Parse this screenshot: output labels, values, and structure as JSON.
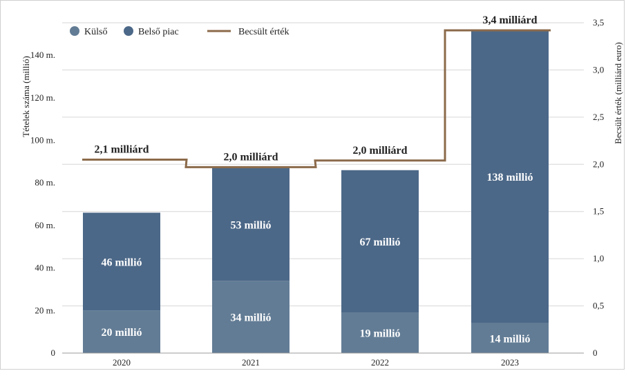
{
  "chart_data": {
    "type": "bar",
    "stacked": true,
    "categories": [
      "2020",
      "2021",
      "2022",
      "2023"
    ],
    "series": [
      {
        "name": "Külső",
        "values": [
          20,
          34,
          19,
          14
        ],
        "labels": [
          "20 millió",
          "34 millió",
          "19 millió",
          "14 millió"
        ],
        "color": "#627c95"
      },
      {
        "name": "Belső piac",
        "values": [
          46,
          53,
          67,
          138
        ],
        "labels": [
          "46 millió",
          "53 millió",
          "67 millió",
          "138 millió"
        ],
        "color": "#4c6888"
      }
    ],
    "line_series": {
      "name": "Becsült érték",
      "axis": "right",
      "values": [
        2.05,
        1.97,
        2.04,
        3.42
      ],
      "labels": [
        "2,1 milliárd",
        "2,0 milliárd",
        "2,0 milliárd",
        "3,4 milliárd"
      ],
      "color": "#8b6a4a"
    },
    "ylabel": "Tételek száma (millió)",
    "ylabel_right": "Becsült érték (milliárd euro)",
    "ylim": [
      0,
      154
    ],
    "ylim_right": [
      0,
      3.5
    ],
    "yticks": [
      0,
      20,
      40,
      60,
      80,
      100,
      120,
      140
    ],
    "ytick_labels": [
      "0",
      "20 m.",
      "40 m.",
      "60 m.",
      "80 m.",
      "100 m.",
      "120 m.",
      "140 m."
    ],
    "yticks_right": [
      0,
      0.5,
      1.0,
      1.5,
      2.0,
      2.5,
      3.0,
      3.5
    ],
    "ytick_labels_right": [
      "0",
      "0,5",
      "1,0",
      "1,5",
      "2,0",
      "2,5",
      "3,0",
      "3,5"
    ],
    "grid": "horizontal (right axis)",
    "legend_position": "top-left"
  }
}
